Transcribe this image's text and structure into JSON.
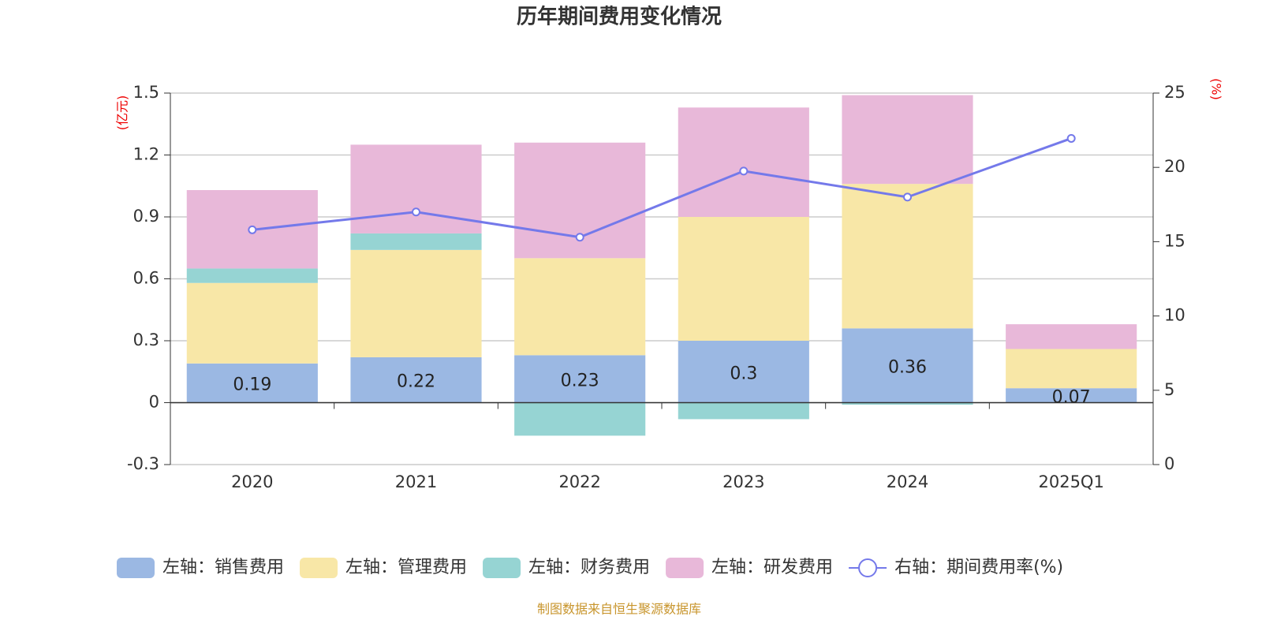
{
  "chart_data": {
    "type": "stacked-bar-line",
    "title": "历年期间费用变化情况",
    "y_axis_label": "(亿元)",
    "y2_axis_label": "(%)",
    "source": "制图数据来自恒生聚源数据库",
    "categories": [
      "2020",
      "2021",
      "2022",
      "2023",
      "2024",
      "2025Q1"
    ],
    "ylim": [
      -0.3,
      1.5
    ],
    "yticks": [
      -0.3,
      0,
      0.3,
      0.6,
      0.9,
      1.2,
      1.5
    ],
    "y2lim": [
      0,
      25
    ],
    "y2ticks": [
      0,
      5,
      10,
      15,
      20,
      25
    ],
    "grid": true,
    "series": [
      {
        "name": "左轴：销售费用",
        "color": "#9bb8e3",
        "values": [
          0.19,
          0.22,
          0.23,
          0.3,
          0.36,
          0.07
        ]
      },
      {
        "name": "左轴：管理费用",
        "color": "#f8e7a7",
        "values": [
          0.39,
          0.52,
          0.47,
          0.6,
          0.7,
          0.19
        ]
      },
      {
        "name": "左轴：财务费用",
        "color": "#96d4d3",
        "values": [
          0.07,
          0.08,
          -0.16,
          -0.08,
          -0.01,
          0
        ]
      },
      {
        "name": "左轴：研发费用",
        "color": "#e8b8d9",
        "values": [
          0.38,
          0.43,
          0.56,
          0.53,
          0.43,
          0.12
        ]
      },
      {
        "name": "右轴：期间费用率(%)",
        "color": "#7479ea",
        "axis": "y2",
        "line": true,
        "values": [
          15.8,
          17.0,
          15.3,
          19.75,
          18.0,
          21.95
        ]
      }
    ]
  }
}
